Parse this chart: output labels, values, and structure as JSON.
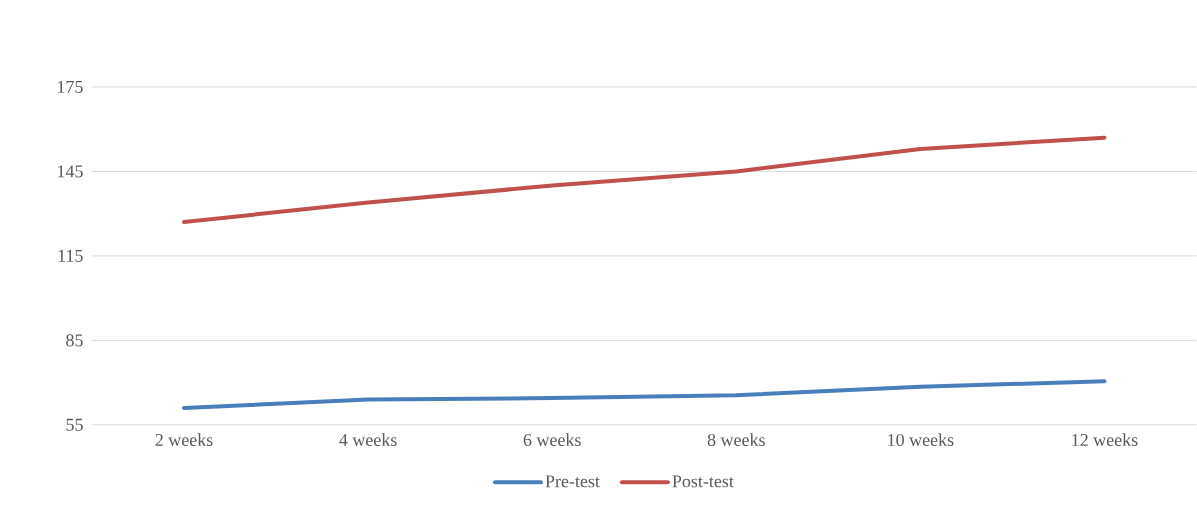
{
  "chart_data": {
    "type": "line",
    "categories": [
      "2 weeks",
      "4 weeks",
      "6 weeks",
      "8 weeks",
      "10 weeks",
      "12 weeks"
    ],
    "series": [
      {
        "name": "Pre-test",
        "color": "#4a7ebb",
        "values": [
          61,
          64,
          64.5,
          65.5,
          68.5,
          70.5
        ]
      },
      {
        "name": "Post-test",
        "color": "#c0504d",
        "values": [
          127,
          134,
          140,
          145,
          153,
          157
        ]
      }
    ],
    "ylim": [
      55,
      175
    ],
    "yticks": [
      55,
      85,
      115,
      145,
      175
    ],
    "grid": "y",
    "legend": "bottom"
  }
}
